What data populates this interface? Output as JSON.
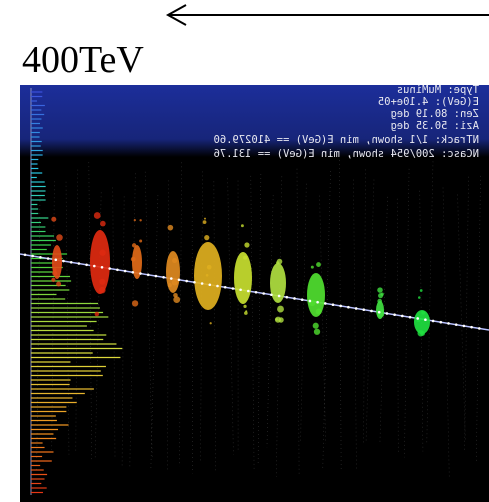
{
  "header": {
    "energy": "400TeV"
  },
  "event_info": {
    "lines": [
      "Type: MuMinus",
      "E(GeV): 4.10e+05",
      "Zen: 80.19 deg",
      "Azi: 50.35 deg",
      "NTrack: 1/1 shown, min E(GeV) == 410279.60",
      "NCasc: 200/954 shown, min E(GeV) == 131.76"
    ]
  }
}
